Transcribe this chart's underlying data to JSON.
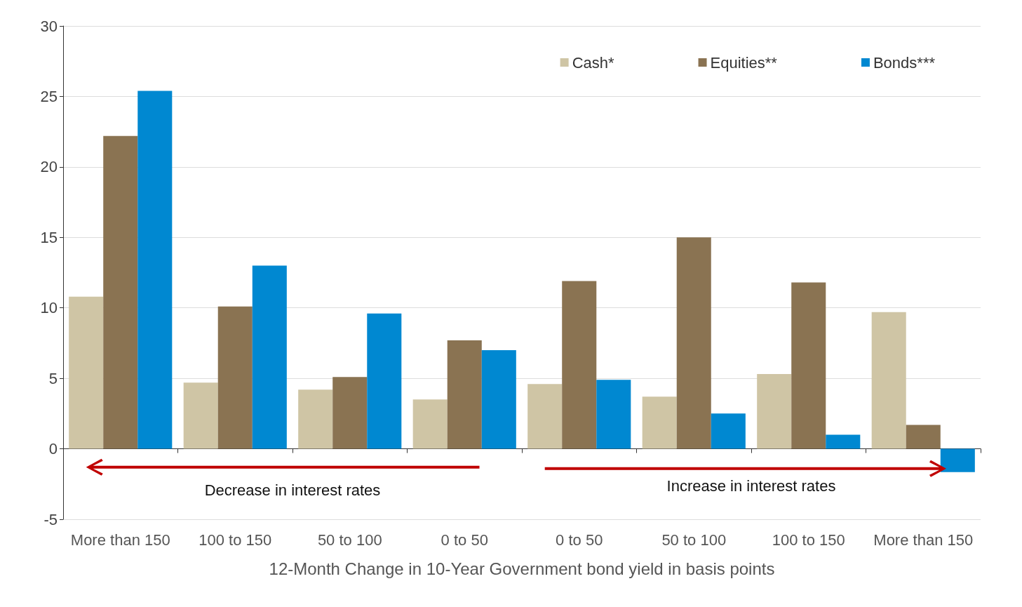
{
  "chart_data": {
    "type": "bar",
    "xlabel": "12-Month Change in 10-Year Government bond yield in basis points",
    "categories": [
      "More than 150",
      "100 to 150",
      "50 to 100",
      "0 to 50",
      "0 to 50",
      "50 to 100",
      "100 to 150",
      "More than 150"
    ],
    "series": [
      {
        "name": "Cash*",
        "color": "#cfc5a5",
        "values": [
          10.8,
          4.7,
          4.2,
          3.5,
          4.6,
          3.7,
          5.3,
          9.7
        ]
      },
      {
        "name": "Equities**",
        "color": "#8a7352",
        "values": [
          22.2,
          10.1,
          5.1,
          7.7,
          11.9,
          15.0,
          11.8,
          1.7
        ]
      },
      {
        "name": "Bonds***",
        "color": "#0088d1",
        "values": [
          25.4,
          13.0,
          9.6,
          7.0,
          4.9,
          2.5,
          1.0,
          -1.65
        ]
      }
    ],
    "ylim": [
      -5,
      30
    ],
    "yticks": [
      -5,
      0,
      5,
      10,
      15,
      20,
      25,
      30
    ],
    "grid": "y",
    "legend": "top right",
    "annotations": [
      "Decrease in interest rates",
      "Increase in interest rates"
    ]
  }
}
